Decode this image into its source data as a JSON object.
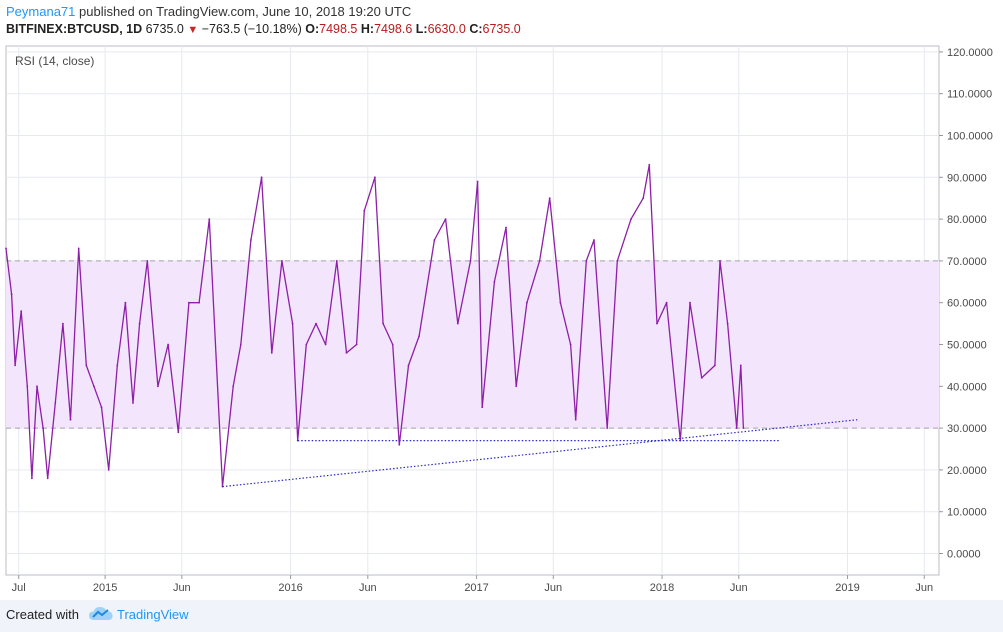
{
  "header": {
    "author": "Peymana71",
    "published_text": "published on TradingView.com, June 10, 2018 19:20 UTC",
    "symbol": "BITFINEX:BTCUSD, 1D",
    "last": "6735.0",
    "change": "−763.5 (−10.18%)",
    "o_label": "O:",
    "o_value": "7498.5",
    "h_label": "H:",
    "h_value": "7498.6",
    "l_label": "L:",
    "l_value": "6630.0",
    "c_label": "C:",
    "c_value": "6735.0"
  },
  "footer": {
    "created_with": "Created with",
    "brand": "TradingView"
  },
  "colors": {
    "rsi_line": "#8e1fa8",
    "band_fill": "#f3e5fc",
    "trendline": "#2a2ac7",
    "accent": "#2196f3"
  },
  "icons": {
    "down_triangle": "down-triangle-icon",
    "logo": "tradingview-cloud-icon"
  },
  "chart_data": {
    "type": "line",
    "title": "",
    "indicator_label": "RSI (14, close)",
    "xlabel": "",
    "ylabel": "",
    "ylim": [
      -5,
      122
    ],
    "y_ticks": [
      "120.0000",
      "110.0000",
      "100.0000",
      "90.0000",
      "80.0000",
      "70.0000",
      "60.0000",
      "50.0000",
      "40.0000",
      "30.0000",
      "20.0000",
      "10.0000",
      "0.0000"
    ],
    "x_ticks": [
      "Jul",
      "2015",
      "Jun",
      "2016",
      "Jun",
      "2017",
      "Jun",
      "2018",
      "Jun",
      "2019",
      "Jun"
    ],
    "x_range": [
      "2014-06-20",
      "2019-06-30"
    ],
    "bands": {
      "upper": 70,
      "lower": 30
    },
    "grid": true,
    "series": [
      {
        "values": [
          [
            "2014-06-20",
            73
          ],
          [
            "2014-07-01",
            62
          ],
          [
            "2014-07-08",
            45
          ],
          [
            "2014-07-20",
            58
          ],
          [
            "2014-08-01",
            40
          ],
          [
            "2014-08-10",
            18
          ],
          [
            "2014-08-20",
            40
          ],
          [
            "2014-09-01",
            30
          ],
          [
            "2014-09-10",
            18
          ],
          [
            "2014-09-25",
            36
          ],
          [
            "2014-10-10",
            55
          ],
          [
            "2014-10-25",
            32
          ],
          [
            "2014-11-10",
            73
          ],
          [
            "2014-11-25",
            45
          ],
          [
            "2014-12-10",
            40
          ],
          [
            "2014-12-25",
            35
          ],
          [
            "2015-01-08",
            20
          ],
          [
            "2015-01-25",
            45
          ],
          [
            "2015-02-10",
            60
          ],
          [
            "2015-02-25",
            36
          ],
          [
            "2015-03-10",
            55
          ],
          [
            "2015-03-25",
            70
          ],
          [
            "2015-04-15",
            40
          ],
          [
            "2015-05-05",
            50
          ],
          [
            "2015-05-25",
            29
          ],
          [
            "2015-06-15",
            60
          ],
          [
            "2015-07-05",
            60
          ],
          [
            "2015-07-25",
            80
          ],
          [
            "2015-08-20",
            16
          ],
          [
            "2015-09-10",
            40
          ],
          [
            "2015-09-25",
            50
          ],
          [
            "2015-10-15",
            75
          ],
          [
            "2015-11-05",
            90
          ],
          [
            "2015-11-25",
            48
          ],
          [
            "2015-12-15",
            70
          ],
          [
            "2016-01-05",
            55
          ],
          [
            "2016-01-15",
            27
          ],
          [
            "2016-02-01",
            50
          ],
          [
            "2016-02-20",
            55
          ],
          [
            "2016-03-10",
            50
          ],
          [
            "2016-04-01",
            70
          ],
          [
            "2016-04-20",
            48
          ],
          [
            "2016-05-10",
            50
          ],
          [
            "2016-05-25",
            82
          ],
          [
            "2016-06-15",
            90
          ],
          [
            "2016-07-01",
            55
          ],
          [
            "2016-07-20",
            50
          ],
          [
            "2016-08-02",
            26
          ],
          [
            "2016-08-20",
            45
          ],
          [
            "2016-09-10",
            52
          ],
          [
            "2016-10-10",
            75
          ],
          [
            "2016-11-01",
            80
          ],
          [
            "2016-11-25",
            55
          ],
          [
            "2016-12-20",
            70
          ],
          [
            "2017-01-03",
            89
          ],
          [
            "2017-01-12",
            35
          ],
          [
            "2017-02-05",
            65
          ],
          [
            "2017-02-28",
            78
          ],
          [
            "2017-03-20",
            40
          ],
          [
            "2017-04-10",
            60
          ],
          [
            "2017-05-05",
            70
          ],
          [
            "2017-05-25",
            85
          ],
          [
            "2017-06-15",
            60
          ],
          [
            "2017-07-05",
            50
          ],
          [
            "2017-07-15",
            32
          ],
          [
            "2017-08-05",
            70
          ],
          [
            "2017-08-20",
            75
          ],
          [
            "2017-09-15",
            30
          ],
          [
            "2017-10-05",
            70
          ],
          [
            "2017-11-01",
            80
          ],
          [
            "2017-11-25",
            85
          ],
          [
            "2017-12-07",
            93
          ],
          [
            "2017-12-22",
            55
          ],
          [
            "2018-01-10",
            60
          ],
          [
            "2018-02-06",
            27
          ],
          [
            "2018-02-25",
            60
          ],
          [
            "2018-03-20",
            42
          ],
          [
            "2018-04-15",
            45
          ],
          [
            "2018-04-25",
            70
          ],
          [
            "2018-05-10",
            55
          ],
          [
            "2018-05-28",
            30
          ],
          [
            "2018-06-05",
            45
          ],
          [
            "2018-06-10",
            30
          ]
        ]
      }
    ],
    "trendlines": [
      {
        "from": [
          "2016-01-15",
          27
        ],
        "to": [
          "2018-08-20",
          27
        ]
      },
      {
        "from": [
          "2015-08-20",
          16
        ],
        "to": [
          "2019-01-20",
          32
        ]
      }
    ]
  }
}
